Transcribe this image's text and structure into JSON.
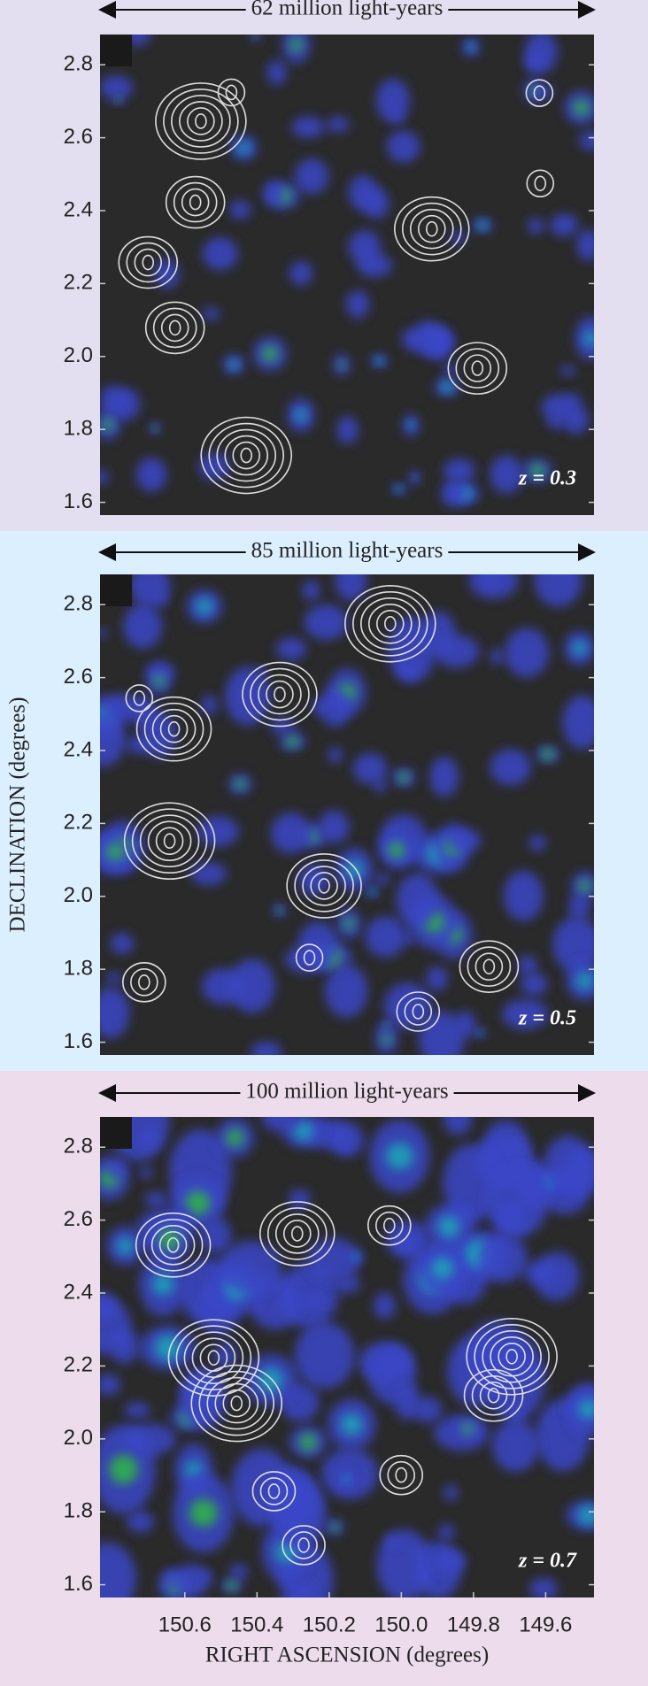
{
  "chart_data": [
    {
      "type": "map",
      "scale_label": "62 million light-years",
      "annotation": "z = 0.3",
      "ylim": [
        1.565,
        2.883
      ],
      "yticks": [
        {
          "value": 1.6,
          "label": "1.6"
        },
        {
          "value": 1.8,
          "label": "1.8"
        },
        {
          "value": 2.0,
          "label": "2.0"
        },
        {
          "value": 2.2,
          "label": "2.2"
        },
        {
          "value": 2.4,
          "label": "2.4"
        },
        {
          "value": 2.6,
          "label": "2.6"
        },
        {
          "value": 2.8,
          "label": "2.8"
        }
      ],
      "xlim": [
        150.835,
        149.466
      ]
    },
    {
      "type": "map",
      "scale_label": "85 million light-years",
      "annotation": "z = 0.5",
      "ylabel": "DECLINATION (degrees)",
      "ylim": [
        1.565,
        2.883
      ],
      "yticks": [
        {
          "value": 1.6,
          "label": "1.6"
        },
        {
          "value": 1.8,
          "label": "1.8"
        },
        {
          "value": 2.0,
          "label": "2.0"
        },
        {
          "value": 2.2,
          "label": "2.2"
        },
        {
          "value": 2.4,
          "label": "2.4"
        },
        {
          "value": 2.6,
          "label": "2.6"
        },
        {
          "value": 2.8,
          "label": "2.8"
        }
      ],
      "xlim": [
        150.835,
        149.466
      ]
    },
    {
      "type": "map",
      "scale_label": "100 million light-years",
      "annotation": "z = 0.7",
      "xlabel": "RIGHT ASCENSION (degrees)",
      "ylim": [
        1.565,
        2.883
      ],
      "yticks": [
        {
          "value": 1.6,
          "label": "1.6"
        },
        {
          "value": 1.8,
          "label": "1.8"
        },
        {
          "value": 2.0,
          "label": "2.0"
        },
        {
          "value": 2.2,
          "label": "2.2"
        },
        {
          "value": 2.4,
          "label": "2.4"
        },
        {
          "value": 2.6,
          "label": "2.6"
        },
        {
          "value": 2.8,
          "label": "2.8"
        }
      ],
      "xlim": [
        150.835,
        149.466
      ],
      "xticks": [
        {
          "value": 150.6,
          "label": "150.6"
        },
        {
          "value": 150.4,
          "label": "150.4"
        },
        {
          "value": 150.2,
          "label": "150.2"
        },
        {
          "value": 150.0,
          "label": "150.0"
        },
        {
          "value": 149.8,
          "label": "149.8"
        },
        {
          "value": 149.6,
          "label": "149.6"
        }
      ]
    }
  ]
}
